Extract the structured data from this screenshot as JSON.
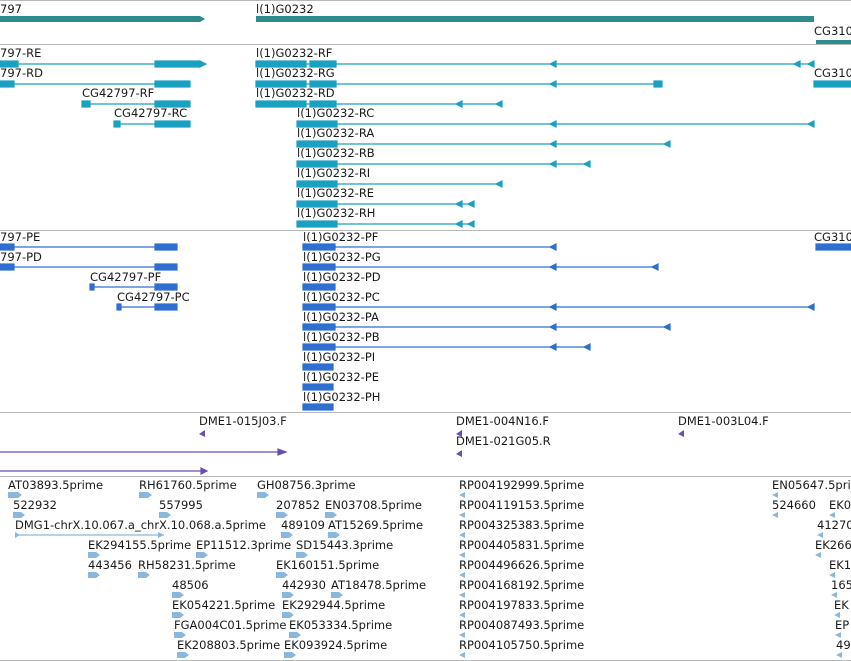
{
  "colors": {
    "gene": "#2e8b8b",
    "transcript": "#1aa0c0",
    "cds": "#2e6fd0",
    "clone": "#6b4fb0",
    "est": "#8ab8dc",
    "divider": "#b8b8b8"
  },
  "gene_track": {
    "genes": [
      {
        "id": "g1",
        "label": "797",
        "strand": "+"
      },
      {
        "id": "g2",
        "label": "l(1)G0232",
        "strand": "+"
      },
      {
        "id": "g3",
        "label": "CG310",
        "strand": "-"
      }
    ]
  },
  "transcript_track": {
    "left_transcripts": [
      "797-RE",
      "797-RD",
      "CG42797-RF",
      "CG42797-RC"
    ],
    "main_transcripts": [
      "l(1)G0232-RF",
      "l(1)G0232-RG",
      "l(1)G0232-RD",
      "l(1)G0232-RC",
      "l(1)G0232-RA",
      "l(1)G0232-RB",
      "l(1)G0232-RI",
      "l(1)G0232-RE",
      "l(1)G0232-RH"
    ],
    "right_transcripts": [
      "CG310"
    ]
  },
  "protein_track": {
    "left_proteins": [
      "797-PE",
      "797-PD",
      "CG42797-PF",
      "CG42797-PC"
    ],
    "main_proteins": [
      "l(1)G0232-PF",
      "l(1)G0232-PG",
      "l(1)G0232-PD",
      "l(1)G0232-PC",
      "l(1)G0232-PA",
      "l(1)G0232-PB",
      "l(1)G0232-PI",
      "l(1)G0232-PE",
      "l(1)G0232-PH"
    ],
    "right_proteins": [
      "CG310"
    ]
  },
  "clone_track": {
    "clones": [
      "DME1-015J03.F",
      "DME1-004N16.F",
      "DME1-021G05.R",
      "DME1-003L04.F"
    ]
  },
  "est_track": {
    "labels": [
      "AT03893.5prime",
      "RH61760.5prime",
      "GH08756.3prime",
      "522932",
      "557995",
      "207852",
      "EN03708.5prime",
      "DMG1-chrX.10.067.a_chrX.10.068.a.5prime",
      "489109",
      "AT15269.5prime",
      "EK294155.5prime",
      "EP11512.3prime",
      "SD15443.3prime",
      "443456",
      "RH58231.5prime",
      "EK160151.5prime",
      "48506",
      "442930",
      "AT18478.5prime",
      "EK054221.5prime",
      "EK292944.5prime",
      "FGA004C01.5prime",
      "EK053334.5prime",
      "EK208803.5prime",
      "EK093924.5prime",
      "RP004192999.5prime",
      "RP004119153.5prime",
      "RP004325383.5prime",
      "RP004405831.5prime",
      "RP004496626.5prime",
      "RP004168192.5prime",
      "RP004197833.5prime",
      "RP004087493.5prime",
      "RP004105750.5prime",
      "EN05647.5prime",
      "524660",
      "EK0",
      "41270",
      "EK266",
      "EK1",
      "165",
      "EK",
      "EP",
      "49"
    ]
  }
}
